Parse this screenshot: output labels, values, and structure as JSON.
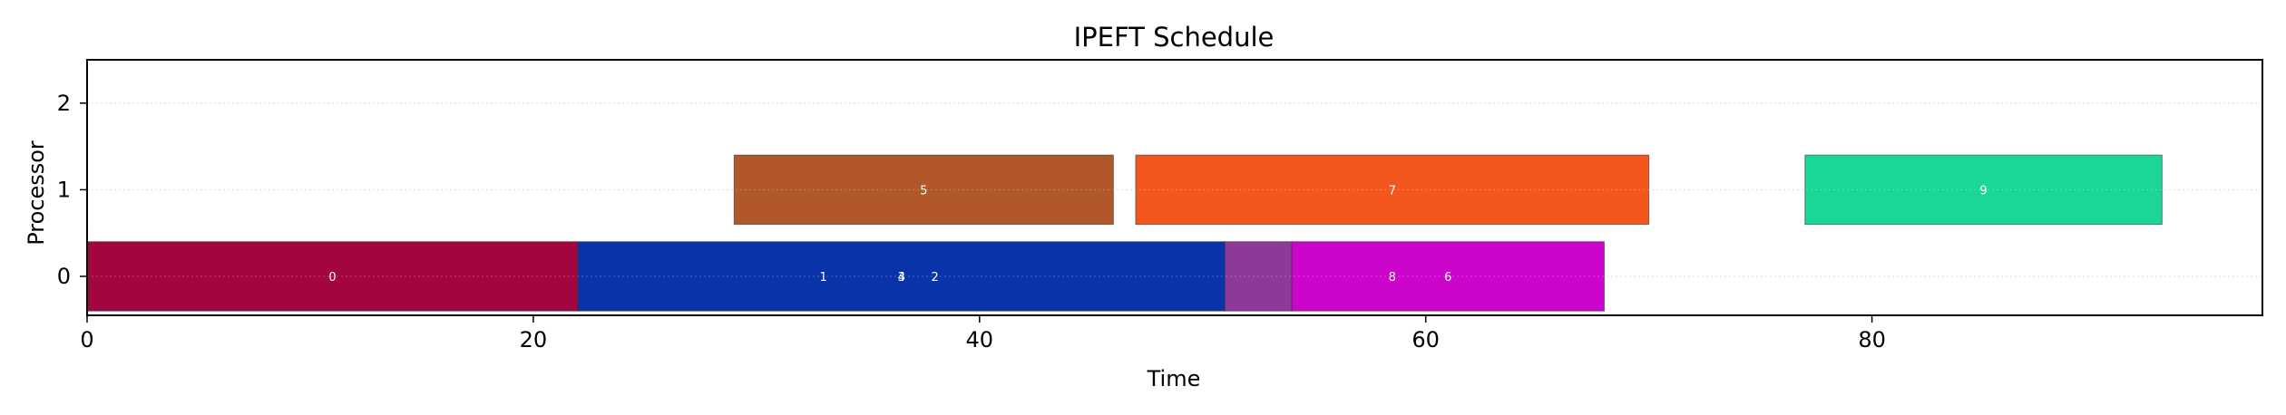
{
  "chart_data": {
    "type": "gantt",
    "title": "IPEFT Schedule",
    "xlabel": "Time",
    "ylabel": "Processor",
    "xlim": [
      0,
      97.5
    ],
    "ylim": [
      -0.45,
      2.5
    ],
    "xticks": [
      0,
      20,
      40,
      60,
      80
    ],
    "yticks": [
      0,
      1,
      2
    ],
    "grid": "horizontal dotted",
    "tasks": [
      {
        "label": "0",
        "processor": 0,
        "start": 0,
        "end": 22,
        "color": "#a30541"
      },
      {
        "label": "3",
        "processor": 0,
        "start": 22,
        "end": 51,
        "color": "#0933a8"
      },
      {
        "label": "",
        "processor": 0,
        "start": 51,
        "end": 54,
        "color": "#8e3899"
      },
      {
        "label": "",
        "processor": 0,
        "start": 54,
        "end": 68,
        "color": "#cb05cb"
      },
      {
        "label": "1",
        "processor": 0,
        "text_x": 33
      },
      {
        "label": "4",
        "processor": 0,
        "text_x": 36.5
      },
      {
        "label": "2",
        "processor": 0,
        "text_x": 38
      },
      {
        "label": "8",
        "processor": 0,
        "text_x": 58.5
      },
      {
        "label": "6",
        "processor": 0,
        "text_x": 61
      },
      {
        "label": "5",
        "processor": 1,
        "start": 29,
        "end": 46,
        "color": "#b0582a"
      },
      {
        "label": "7",
        "processor": 1,
        "start": 47,
        "end": 70,
        "color": "#f4571d"
      },
      {
        "label": "9",
        "processor": 1,
        "start": 77,
        "end": 93,
        "color": "#1bd699"
      }
    ]
  }
}
